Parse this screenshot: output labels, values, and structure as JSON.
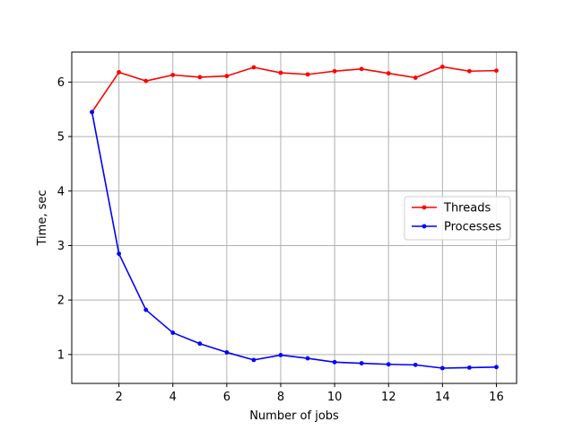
{
  "chart_data": {
    "type": "line",
    "title": "",
    "xlabel": "Number of jobs",
    "ylabel": "Time, sec",
    "xlim": [
      0.25,
      16.75
    ],
    "ylim": [
      0.47,
      6.55
    ],
    "xticks": [
      2,
      4,
      6,
      8,
      10,
      12,
      14,
      16
    ],
    "yticks": [
      1,
      2,
      3,
      4,
      5,
      6
    ],
    "grid": true,
    "legend_position": "center-right",
    "x": [
      1,
      2,
      3,
      4,
      5,
      6,
      7,
      8,
      9,
      10,
      11,
      12,
      13,
      14,
      15,
      16
    ],
    "series": [
      {
        "name": "Threads",
        "color": "#ff0000",
        "values": [
          5.45,
          6.18,
          6.02,
          6.13,
          6.09,
          6.11,
          6.27,
          6.17,
          6.14,
          6.2,
          6.24,
          6.16,
          6.08,
          6.28,
          6.2,
          6.21
        ]
      },
      {
        "name": "Processes",
        "color": "#0000ff",
        "values": [
          5.45,
          2.85,
          1.82,
          1.4,
          1.2,
          1.04,
          0.9,
          0.99,
          0.93,
          0.86,
          0.84,
          0.82,
          0.81,
          0.75,
          0.76,
          0.77
        ]
      }
    ]
  }
}
